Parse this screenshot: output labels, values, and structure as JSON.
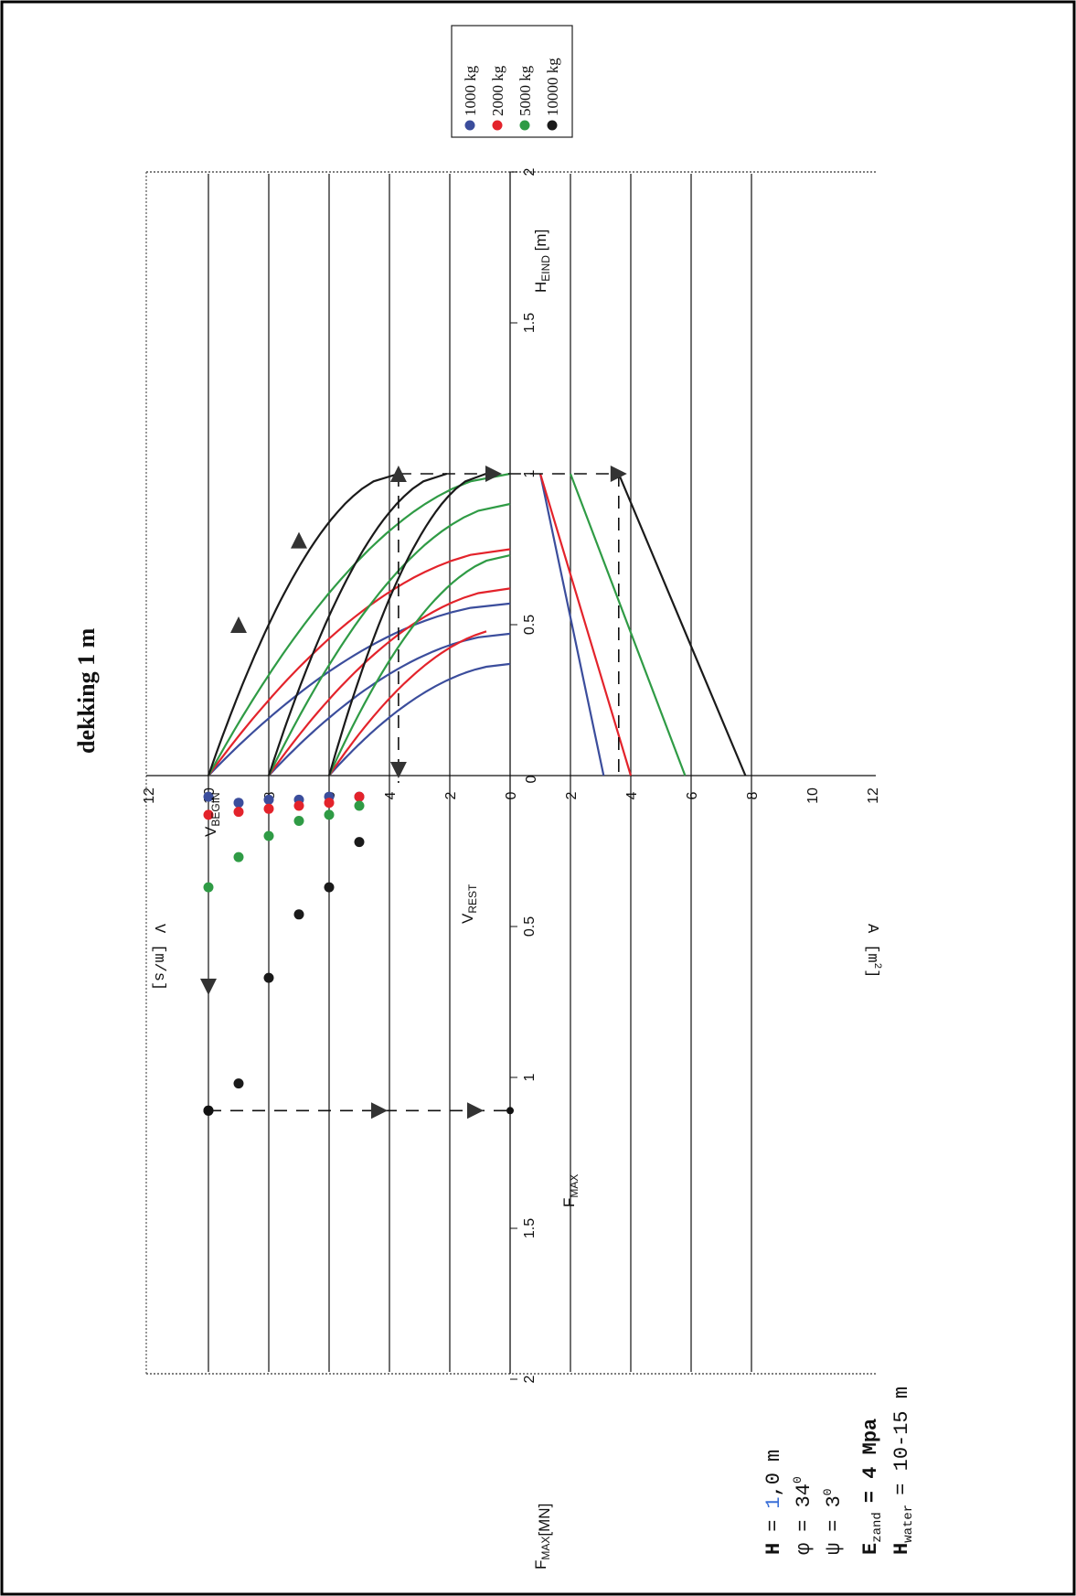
{
  "title": "dekking 1 m",
  "legend": {
    "items": [
      {
        "label": "1000 kg",
        "color": "#3b4d9c"
      },
      {
        "label": "2000 kg",
        "color": "#e3232b"
      },
      {
        "label": "5000 kg",
        "color": "#2f9b45"
      },
      {
        "label": "10000 kg",
        "color": "#1a1a1a"
      }
    ]
  },
  "axes": {
    "f_max_label": "F",
    "f_max_sub": "MAX",
    "f_max_unit": "[MN]",
    "h_eind_label": "H",
    "h_eind_sub": "EIND",
    "h_eind_unit": "[m]",
    "v_label": "V",
    "v_unit": "[m/s]",
    "a_label": "A",
    "a_unit": "[m",
    "a_unit_sup": "2",
    "a_unit_close": "]"
  },
  "annotations": {
    "v_begin": "V",
    "v_begin_sub": "BEGIN",
    "v_rest": "V",
    "v_rest_sub": "REST",
    "f_max": "F",
    "f_max_sub": "MAX"
  },
  "params": {
    "h_label": "H",
    "h_eq": "=",
    "h_val_1": "1",
    "h_val_2": ",0",
    "h_unit": "m",
    "phi": "φ",
    "phi_val": "= 34",
    "phi_sup": "0",
    "psi": "ψ",
    "psi_val": "= 3",
    "psi_sup": "0",
    "ezand": "E",
    "ezand_sub": "zand",
    "ezand_val": "= 4 Mpa",
    "hwater": "H",
    "hwater_sub": "water",
    "hwater_val": "= 10-15 m"
  },
  "chart_data": {
    "type": "line",
    "title": "dekking 1 m",
    "panels": {
      "velocity_vs_h_eind": {
        "xlabel": "H EIND [m]",
        "ylabel": "V [m/s]",
        "xlim": [
          0,
          2
        ],
        "ylim": [
          0,
          12
        ],
        "x_ticks": [
          "0",
          "0.5",
          "1",
          "1.5",
          "2"
        ],
        "y_ticks": [
          "12",
          "10",
          "8",
          "6",
          "4",
          "2",
          "0"
        ],
        "series": [
          {
            "name": "1000 kg",
            "curves": [
              {
                "v0": 10,
                "h_end": 0.57
              },
              {
                "v0": 8,
                "h_end": 0.47
              },
              {
                "v0": 6,
                "h_end": 0.37
              }
            ]
          },
          {
            "name": "2000 kg",
            "curves": [
              {
                "v0": 10,
                "h_end": 0.75
              },
              {
                "v0": 8,
                "h_end": 0.62
              },
              {
                "v0": 6,
                "h_end": 0.49
              }
            ]
          },
          {
            "name": "5000 kg",
            "curves": [
              {
                "v0": 10,
                "h_end": 1.0
              },
              {
                "v0": 8,
                "h_end": 0.9
              },
              {
                "v0": 6,
                "h_end": 0.73
              }
            ]
          },
          {
            "name": "10000 kg",
            "curves": [
              {
                "v0": 10,
                "h_end": 1.0,
                "v_end": 3.7
              },
              {
                "v0": 8,
                "h_end": 1.0,
                "v_end": 2.1
              },
              {
                "v0": 6,
                "h_end": 1.0,
                "v_end": 0.8
              }
            ]
          }
        ]
      },
      "velocity_vs_f_max": {
        "xlabel": "F MAX [MN]",
        "ylabel": "V [m/s]",
        "xlim": [
          0,
          2
        ],
        "x_ticks": [
          "0",
          "0.5",
          "1",
          "1.5",
          "2"
        ],
        "series": [
          {
            "name": "1000 kg",
            "points": [
              [
                0.07,
                5
              ],
              [
                0.07,
                6
              ],
              [
                0.08,
                7
              ],
              [
                0.08,
                8
              ],
              [
                0.09,
                9
              ],
              [
                0.07,
                10
              ]
            ]
          },
          {
            "name": "2000 kg",
            "points": [
              [
                0.07,
                5
              ],
              [
                0.09,
                6
              ],
              [
                0.1,
                7
              ],
              [
                0.11,
                8
              ],
              [
                0.12,
                9
              ],
              [
                0.13,
                10
              ]
            ]
          },
          {
            "name": "5000 kg",
            "points": [
              [
                0.1,
                5
              ],
              [
                0.13,
                6
              ],
              [
                0.15,
                7
              ],
              [
                0.2,
                8
              ],
              [
                0.27,
                9
              ],
              [
                0.37,
                10
              ]
            ]
          },
          {
            "name": "10000 kg",
            "points": [
              [
                0.22,
                5
              ],
              [
                0.37,
                6
              ],
              [
                0.46,
                7
              ],
              [
                0.67,
                8
              ],
              [
                1.02,
                9
              ],
              [
                1.11,
                10
              ]
            ]
          }
        ]
      },
      "area_vs_h_eind": {
        "xlabel": "H EIND [m]",
        "ylabel": "A [m2]",
        "xlim": [
          0,
          2
        ],
        "ylim": [
          0,
          12
        ],
        "y_ticks": [
          "0",
          "2",
          "4",
          "6",
          "8",
          "10",
          "12"
        ],
        "series": [
          {
            "name": "1000 kg",
            "x": [
              0,
              1.0
            ],
            "y": [
              3.1,
              1.0
            ]
          },
          {
            "name": "2000 kg",
            "x": [
              0,
              1.0
            ],
            "y": [
              4.0,
              1.0
            ]
          },
          {
            "name": "5000 kg",
            "x": [
              0,
              1.0
            ],
            "y": [
              5.8,
              2.0
            ]
          },
          {
            "name": "10000 kg",
            "x": [
              0,
              1.0
            ],
            "y": [
              7.8,
              3.6
            ]
          }
        ]
      }
    }
  }
}
